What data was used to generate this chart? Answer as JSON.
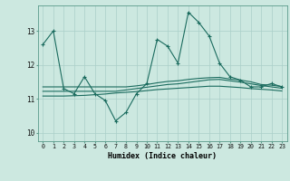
{
  "xlabel": "Humidex (Indice chaleur)",
  "bg_color": "#cce8e0",
  "line_color": "#1a6b5e",
  "grid_color": "#aacfc8",
  "xlim": [
    -0.5,
    23.5
  ],
  "ylim": [
    9.75,
    13.75
  ],
  "yticks": [
    10,
    11,
    12,
    13
  ],
  "xticks": [
    0,
    1,
    2,
    3,
    4,
    5,
    6,
    7,
    8,
    9,
    10,
    11,
    12,
    13,
    14,
    15,
    16,
    17,
    18,
    19,
    20,
    21,
    22,
    23
  ],
  "line1_y": [
    12.6,
    13.0,
    11.3,
    11.15,
    11.65,
    11.15,
    10.95,
    10.35,
    10.6,
    11.15,
    11.45,
    12.75,
    12.55,
    12.05,
    13.55,
    13.25,
    12.85,
    12.05,
    11.65,
    11.55,
    11.35,
    11.35,
    11.45,
    11.35
  ],
  "line2_y": [
    11.35,
    11.35,
    11.35,
    11.35,
    11.35,
    11.35,
    11.35,
    11.35,
    11.35,
    11.38,
    11.42,
    11.47,
    11.51,
    11.53,
    11.57,
    11.6,
    11.62,
    11.63,
    11.58,
    11.55,
    11.5,
    11.42,
    11.4,
    11.36
  ],
  "line3_y": [
    11.22,
    11.22,
    11.22,
    11.22,
    11.22,
    11.22,
    11.22,
    11.22,
    11.26,
    11.3,
    11.34,
    11.38,
    11.42,
    11.44,
    11.48,
    11.52,
    11.56,
    11.57,
    11.53,
    11.49,
    11.44,
    11.39,
    11.35,
    11.31
  ],
  "line4_y": [
    11.08,
    11.08,
    11.08,
    11.09,
    11.1,
    11.12,
    11.14,
    11.17,
    11.19,
    11.21,
    11.24,
    11.27,
    11.29,
    11.31,
    11.33,
    11.35,
    11.37,
    11.37,
    11.35,
    11.33,
    11.3,
    11.28,
    11.26,
    11.23
  ]
}
